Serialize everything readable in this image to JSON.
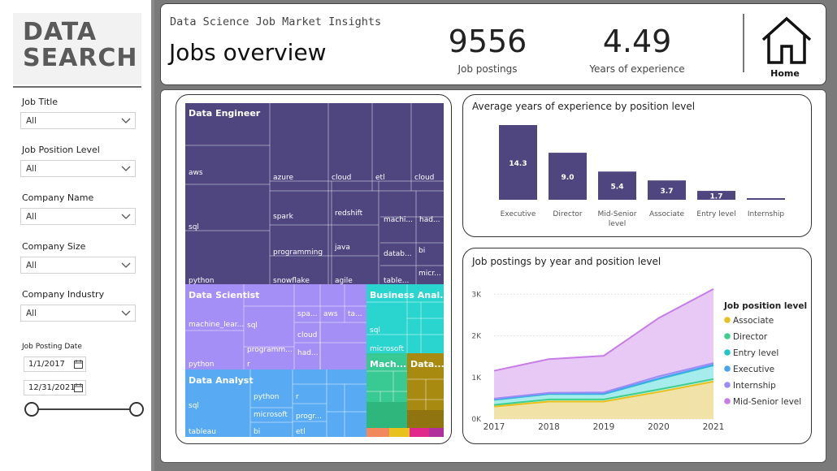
{
  "logo": {
    "line1": "DATA",
    "line2": "SEARCH"
  },
  "filters": {
    "job_title": {
      "label": "Job Title",
      "value": "All"
    },
    "position_level": {
      "label": "Job Position Level",
      "value": "All"
    },
    "company_name": {
      "label": "Company Name",
      "value": "All"
    },
    "company_size": {
      "label": "Company Size",
      "value": "All"
    },
    "company_industry": {
      "label": "Company Industry",
      "value": "All"
    },
    "posting_date": {
      "label": "Job Posting Date",
      "start": "1/1/2017",
      "end": "12/31/2021"
    }
  },
  "header": {
    "subtitle": "Data Science Job Market Insights",
    "title": "Jobs overview",
    "kpi_postings": {
      "value": "9556",
      "label": "Job postings"
    },
    "kpi_experience": {
      "value": "4.49",
      "label": "Years of experience"
    },
    "home_label": "Home"
  },
  "colors": {
    "data_engineer": "#4f4680",
    "data_scientist": "#a48ff6",
    "data_analyst": "#58aaf3",
    "business_analyst": "#2ad5cf",
    "machine_learning": "#39c992",
    "data_other": "#a88a10",
    "associate": "#e8c11c",
    "director": "#3ecf8e",
    "entry_level": "#21c5c5",
    "executive": "#4aa3ef",
    "internship": "#9b8cf5",
    "mid_senior": "#c77de6",
    "bar": "#4f4680"
  },
  "chart_data": [
    {
      "type": "treemap",
      "title": "",
      "groups": [
        {
          "name": "Data Engineer",
          "items": [
            "aws",
            "azure",
            "cloud",
            "etl",
            "cloud",
            "sql",
            "spark",
            "redshift",
            "machi...",
            "had...",
            "programming",
            "java",
            "datab...",
            "bi",
            "micr...",
            "python",
            "snowflake",
            "agile",
            "table..."
          ]
        },
        {
          "name": "Data Scientist",
          "items": [
            "machine_lear...",
            "sql",
            "spa...",
            "aws",
            "ta...",
            "cloud",
            "programm...",
            "had...",
            "python",
            "r"
          ]
        },
        {
          "name": "Business Anal...",
          "items": [
            "sql",
            "microsoft"
          ]
        },
        {
          "name": "Data Analyst",
          "items": [
            "python",
            "r",
            "sql",
            "microsoft",
            "progr...",
            "tableau",
            "bi",
            "etl"
          ]
        },
        {
          "name": "Mach...",
          "items": []
        },
        {
          "name": "Data...",
          "items": []
        }
      ]
    },
    {
      "type": "bar",
      "title": "Average years of experience by position level",
      "categories": [
        "Executive",
        "Director",
        "Mid-Senior level",
        "Associate",
        "Entry level",
        "Internship"
      ],
      "values": [
        14.3,
        9.0,
        5.4,
        3.7,
        1.7,
        0.2
      ],
      "value_labels": [
        "14.3",
        "9.0",
        "5.4",
        "3.7",
        "1.7",
        ""
      ],
      "ylim": [
        0,
        14.3
      ]
    },
    {
      "type": "area",
      "stacked": true,
      "title": "Job postings by year and position level",
      "legend_title": "Job position level",
      "legend_position": "right",
      "x": [
        "2017",
        "2018",
        "2019",
        "2020",
        "2021"
      ],
      "ylim": [
        0,
        3200
      ],
      "yticks": [
        "0K",
        "1K",
        "2K",
        "3K"
      ],
      "grid": true,
      "series": [
        {
          "name": "Associate",
          "values": [
            300,
            420,
            420,
            650,
            900
          ]
        },
        {
          "name": "Director",
          "values": [
            40,
            50,
            50,
            60,
            60
          ]
        },
        {
          "name": "Entry level",
          "values": [
            120,
            130,
            130,
            250,
            330
          ]
        },
        {
          "name": "Executive",
          "values": [
            10,
            10,
            10,
            15,
            15
          ]
        },
        {
          "name": "Internship",
          "values": [
            20,
            20,
            30,
            50,
            40
          ]
        },
        {
          "name": "Mid-Senior level",
          "values": [
            670,
            810,
            880,
            1400,
            1780
          ]
        }
      ]
    }
  ]
}
